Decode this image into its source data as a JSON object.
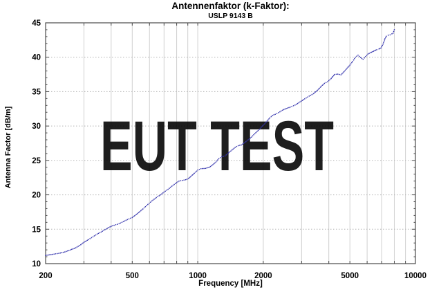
{
  "watermark": {
    "text": "EUT TEST",
    "color": "#79aed9"
  },
  "colors": {
    "curve": "#3434ad",
    "grid_vertical": "#cfcfcf",
    "grid_horizontal": "#b4b4b4",
    "frame": "#4a4a4a",
    "background": "#ffffff"
  },
  "chart_data": {
    "type": "line",
    "title": "Antennenfaktor (k-Faktor):",
    "subtitle": "USLP 9143 B",
    "xlabel": "Frequency [MHz]",
    "ylabel": "Antenna Factor [dB/m]",
    "x_scale": "log",
    "xlim": [
      200,
      10000
    ],
    "ylim": [
      10,
      45
    ],
    "x_major_ticks": [
      200,
      500,
      1000,
      2000,
      5000,
      10000
    ],
    "x_minor_ticks": [
      300,
      400,
      500,
      600,
      700,
      800,
      900,
      1000,
      2000,
      3000,
      4000,
      5000,
      6000,
      7000,
      8000,
      9000
    ],
    "y_major_ticks": [
      45,
      40,
      35,
      30,
      25,
      20,
      15,
      10
    ],
    "y_minor_step": 1,
    "grid": "vertical solid at log minor ticks, horizontal dotted every 5 dB",
    "legend": "none",
    "series": [
      {
        "name": "USLP 9143 B",
        "style": "dotted",
        "color": "#3434ad",
        "points": [
          [
            200,
            11.2
          ],
          [
            215,
            11.35
          ],
          [
            230,
            11.5
          ],
          [
            245,
            11.7
          ],
          [
            260,
            12.0
          ],
          [
            275,
            12.3
          ],
          [
            290,
            12.75
          ],
          [
            300,
            13.1
          ],
          [
            315,
            13.5
          ],
          [
            330,
            13.9
          ],
          [
            345,
            14.3
          ],
          [
            360,
            14.6
          ],
          [
            375,
            14.95
          ],
          [
            390,
            15.25
          ],
          [
            405,
            15.5
          ],
          [
            420,
            15.65
          ],
          [
            435,
            15.8
          ],
          [
            455,
            16.1
          ],
          [
            475,
            16.4
          ],
          [
            500,
            16.7
          ],
          [
            530,
            17.3
          ],
          [
            560,
            17.95
          ],
          [
            590,
            18.6
          ],
          [
            615,
            19.1
          ],
          [
            645,
            19.6
          ],
          [
            675,
            20.0
          ],
          [
            700,
            20.4
          ],
          [
            730,
            20.8
          ],
          [
            760,
            21.25
          ],
          [
            790,
            21.65
          ],
          [
            820,
            22.0
          ],
          [
            850,
            22.1
          ],
          [
            880,
            22.2
          ],
          [
            905,
            22.35
          ],
          [
            935,
            22.75
          ],
          [
            965,
            23.15
          ],
          [
            1000,
            23.6
          ],
          [
            1035,
            23.8
          ],
          [
            1085,
            23.85
          ],
          [
            1130,
            24.0
          ],
          [
            1170,
            24.35
          ],
          [
            1210,
            24.75
          ],
          [
            1250,
            25.25
          ],
          [
            1290,
            25.55
          ],
          [
            1335,
            25.65
          ],
          [
            1385,
            26.1
          ],
          [
            1435,
            26.5
          ],
          [
            1485,
            26.9
          ],
          [
            1535,
            27.15
          ],
          [
            1585,
            27.25
          ],
          [
            1645,
            27.6
          ],
          [
            1705,
            28.0
          ],
          [
            1765,
            28.4
          ],
          [
            1830,
            28.9
          ],
          [
            1895,
            29.35
          ],
          [
            1960,
            29.85
          ],
          [
            2025,
            30.3
          ],
          [
            2085,
            30.75
          ],
          [
            2145,
            31.2
          ],
          [
            2205,
            31.55
          ],
          [
            2270,
            31.7
          ],
          [
            2350,
            31.95
          ],
          [
            2450,
            32.3
          ],
          [
            2550,
            32.55
          ],
          [
            2660,
            32.75
          ],
          [
            2800,
            33.05
          ],
          [
            2950,
            33.5
          ],
          [
            3100,
            33.95
          ],
          [
            3250,
            34.35
          ],
          [
            3400,
            34.7
          ],
          [
            3550,
            35.2
          ],
          [
            3700,
            35.8
          ],
          [
            3820,
            36.2
          ],
          [
            3950,
            36.45
          ],
          [
            4100,
            36.9
          ],
          [
            4250,
            37.5
          ],
          [
            4400,
            37.55
          ],
          [
            4550,
            37.45
          ],
          [
            4700,
            37.9
          ],
          [
            4850,
            38.4
          ],
          [
            5000,
            38.85
          ],
          [
            5150,
            39.4
          ],
          [
            5300,
            40.0
          ],
          [
            5450,
            40.3
          ],
          [
            5600,
            39.95
          ],
          [
            5750,
            39.7
          ],
          [
            5900,
            40.1
          ],
          [
            6050,
            40.45
          ],
          [
            6200,
            40.65
          ],
          [
            6350,
            40.8
          ],
          [
            6500,
            40.95
          ],
          [
            6650,
            41.1
          ],
          [
            6800,
            41.2
          ],
          [
            6950,
            41.35
          ],
          [
            7100,
            41.9
          ],
          [
            7250,
            42.7
          ],
          [
            7350,
            43.05
          ],
          [
            7500,
            43.2
          ],
          [
            7650,
            43.25
          ],
          [
            7800,
            43.4
          ],
          [
            7900,
            43.5
          ],
          [
            8000,
            44.0
          ]
        ]
      }
    ]
  }
}
